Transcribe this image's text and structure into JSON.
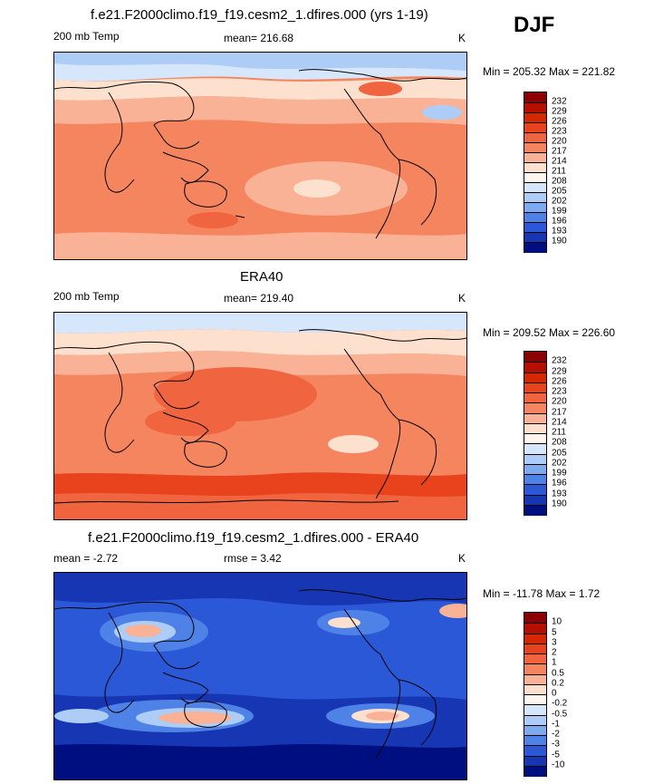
{
  "season": "DJF",
  "panels": [
    {
      "title": "f.e21.F2000climo.f19_f19.cesm2_1.dfires.000 (yrs 1-19)",
      "left_label": "200 mb Temp",
      "center_label": "mean= 216.68",
      "right_label": "K",
      "minmax": "Min = 205.32 Max = 221.82"
    },
    {
      "title": "ERA40",
      "left_label": "200 mb Temp",
      "center_label": "mean= 219.40",
      "right_label": "K",
      "minmax": "Min = 209.52 Max = 226.60"
    },
    {
      "title": "f.e21.F2000climo.f19_f19.cesm2_1.dfires.000 - ERA40",
      "left_label": "mean =  -2.72",
      "center_label": "rmse =   3.42",
      "right_label": "K",
      "minmax": "Min = -11.78 Max =   1.72"
    }
  ],
  "colorbars": [
    {
      "labels": [
        "232",
        "229",
        "226",
        "223",
        "220",
        "217",
        "214",
        "211",
        "208",
        "205",
        "202",
        "199",
        "196",
        "193",
        "190"
      ],
      "colors": [
        "#8b0000",
        "#b50f00",
        "#d42900",
        "#e8431c",
        "#f06440",
        "#f4855f",
        "#f9b296",
        "#fde0cd",
        "#fdf5ee",
        "#d6e6fb",
        "#aecdf6",
        "#7eaaf0",
        "#4f82e6",
        "#2a58d6",
        "#1736b3",
        "#000f80"
      ]
    },
    {
      "labels": [
        "10",
        "5",
        "3",
        "2",
        "1",
        "0.5",
        "0.2",
        "0",
        "-0.2",
        "-0.5",
        "-1",
        "-2",
        "-3",
        "-5",
        "-10"
      ],
      "colors": [
        "#8b0000",
        "#b50f00",
        "#d42900",
        "#e8431c",
        "#f06440",
        "#f4855f",
        "#f9b296",
        "#fde0cd",
        "#fdf5ee",
        "#d6e6fb",
        "#aecdf6",
        "#7eaaf0",
        "#4f82e6",
        "#2a58d6",
        "#1736b3",
        "#000f80"
      ]
    }
  ],
  "colors": {
    "warm_light": "#f9b296",
    "warm_mid": "#f4855f",
    "warm_strong": "#f06440",
    "warm_deep": "#e8431c",
    "neutral": "#fde0cd",
    "cool_light": "#d6e6fb",
    "cool_mid": "#aecdf6",
    "blue_mid": "#4f82e6",
    "blue_strong": "#2a58d6",
    "blue_deep": "#1736b3"
  }
}
